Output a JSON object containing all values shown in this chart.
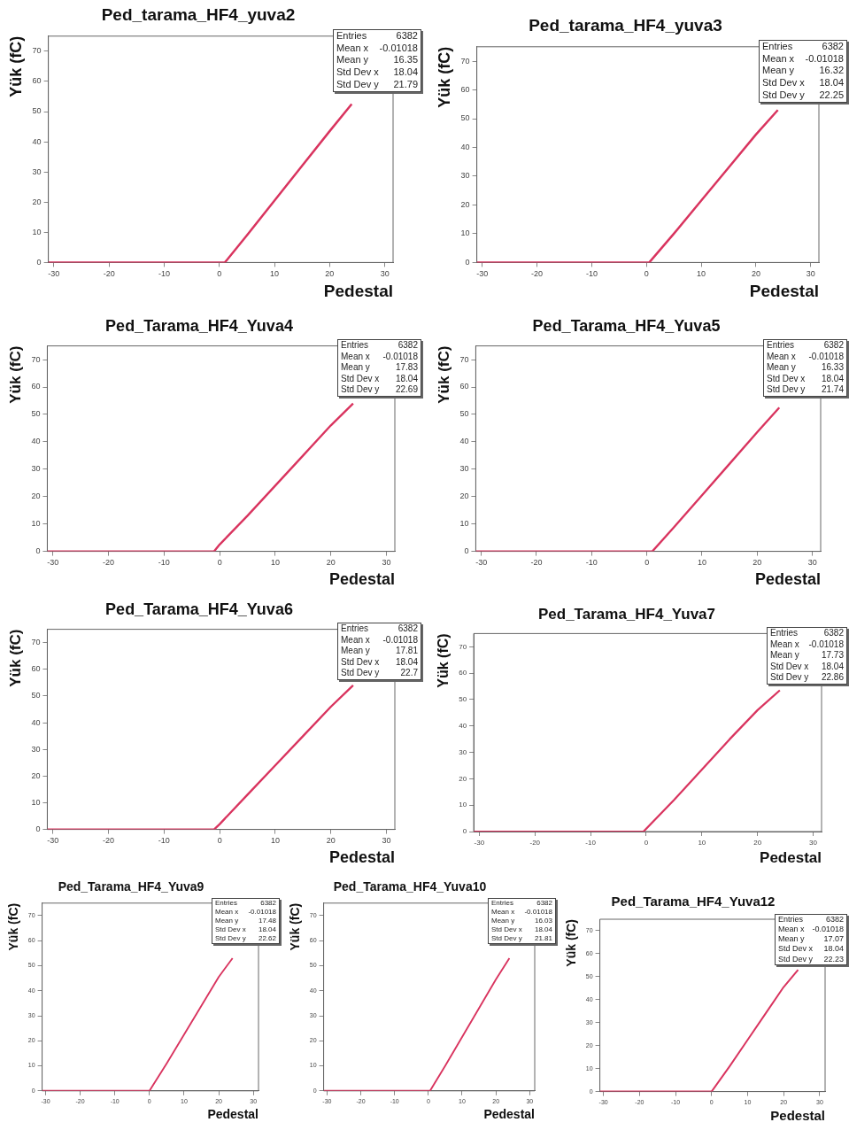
{
  "chart_data": [
    {
      "type": "line",
      "title": "Ped_tarama_HF4_yuva2",
      "xlabel": "Pedestal",
      "ylabel": "Yük (fC)",
      "x": [
        -31,
        1,
        5,
        10,
        15,
        20,
        24
      ],
      "series": [
        {
          "color": "#d9345f",
          "values": [
            0,
            0,
            9,
            20.5,
            32,
            43.5,
            52.5
          ]
        }
      ],
      "xlim": [
        -31,
        31.5
      ],
      "ylim": [
        0,
        75
      ],
      "xticks": [
        -30,
        -20,
        -10,
        0,
        10,
        20,
        30
      ],
      "yticks": [
        0,
        10,
        20,
        30,
        40,
        50,
        60,
        70
      ],
      "grid": false,
      "legend": false,
      "marker": "none",
      "line_style": "solid",
      "annotations": [
        "Entries 6382",
        "Mean x -0.01018",
        "Mean y 16.35",
        "Std Dev x 18.04",
        "Std Dev y 21.79"
      ]
    },
    {
      "type": "line",
      "title": "Ped_tarama_HF4_yuva3",
      "xlabel": "Pedestal",
      "ylabel": "Yük (fC)",
      "x": [
        -31,
        0.5,
        5,
        10,
        15,
        20,
        24
      ],
      "series": [
        {
          "color": "#d9345f",
          "values": [
            0,
            0,
            10,
            21.5,
            33,
            44.5,
            53
          ]
        }
      ],
      "xlim": [
        -31,
        31.5
      ],
      "ylim": [
        0,
        75
      ],
      "xticks": [
        -30,
        -20,
        -10,
        0,
        10,
        20,
        30
      ],
      "yticks": [
        0,
        10,
        20,
        30,
        40,
        50,
        60,
        70
      ],
      "grid": false,
      "legend": false,
      "marker": "none",
      "line_style": "solid",
      "annotations": [
        "Entries 6382",
        "Mean x -0.01018",
        "Mean y 16.32",
        "Std Dev x 18.04",
        "Std Dev y 22.25"
      ]
    },
    {
      "type": "line",
      "title": "Ped_Tarama_HF4_Yuva4",
      "xlabel": "Pedestal",
      "ylabel": "Yük (fC)",
      "x": [
        -31,
        -1,
        0,
        5,
        10,
        15,
        20,
        24
      ],
      "series": [
        {
          "color": "#d9345f",
          "values": [
            0,
            0,
            2.5,
            13,
            24,
            35,
            46,
            54
          ]
        }
      ],
      "xlim": [
        -31,
        31.5
      ],
      "ylim": [
        0,
        75
      ],
      "xticks": [
        -30,
        -20,
        -10,
        0,
        10,
        20,
        30
      ],
      "yticks": [
        0,
        10,
        20,
        30,
        40,
        50,
        60,
        70
      ],
      "grid": false,
      "legend": false,
      "marker": "none",
      "line_style": "solid",
      "annotations": [
        "Entries 6382",
        "Mean x -0.01018",
        "Mean y 17.83",
        "Std Dev x 18.04",
        "Std Dev y 22.69"
      ]
    },
    {
      "type": "line",
      "title": "Ped_Tarama_HF4_Yuva5",
      "xlabel": "Pedestal",
      "ylabel": "Yük (fC)",
      "x": [
        -31,
        1,
        5,
        10,
        15,
        20,
        24
      ],
      "series": [
        {
          "color": "#d9345f",
          "values": [
            0,
            0,
            9,
            20.5,
            32,
            43.5,
            52.5
          ]
        }
      ],
      "xlim": [
        -31,
        31.5
      ],
      "ylim": [
        0,
        75
      ],
      "xticks": [
        -30,
        -20,
        -10,
        0,
        10,
        20,
        30
      ],
      "yticks": [
        0,
        10,
        20,
        30,
        40,
        50,
        60,
        70
      ],
      "grid": false,
      "legend": false,
      "marker": "none",
      "line_style": "solid",
      "annotations": [
        "Entries 6382",
        "Mean x -0.01018",
        "Mean y 16.33",
        "Std Dev x 18.04",
        "Std Dev y 21.74"
      ]
    },
    {
      "type": "line",
      "title": "Ped_Tarama_HF4_Yuva6",
      "xlabel": "Pedestal",
      "ylabel": "Yük (fC)",
      "x": [
        -31,
        -1,
        0,
        5,
        10,
        15,
        20,
        24
      ],
      "series": [
        {
          "color": "#d9345f",
          "values": [
            0,
            0,
            2,
            13,
            24,
            35,
            46,
            54
          ]
        }
      ],
      "xlim": [
        -31,
        31.5
      ],
      "ylim": [
        0,
        75
      ],
      "xticks": [
        -30,
        -20,
        -10,
        0,
        10,
        20,
        30
      ],
      "yticks": [
        0,
        10,
        20,
        30,
        40,
        50,
        60,
        70
      ],
      "grid": false,
      "legend": false,
      "marker": "none",
      "line_style": "solid",
      "annotations": [
        "Entries 6382",
        "Mean x -0.01018",
        "Mean y 17.81",
        "Std Dev x 18.04",
        "Std Dev y 22.7"
      ]
    },
    {
      "type": "line",
      "title": "Ped_Tarama_HF4_Yuva7",
      "xlabel": "Pedestal",
      "ylabel": "Yük (fC)",
      "x": [
        -31,
        -0.5,
        5,
        10,
        15,
        20,
        24
      ],
      "series": [
        {
          "color": "#d9345f",
          "values": [
            0,
            0,
            12,
            23.5,
            35,
            46,
            53.5
          ]
        }
      ],
      "xlim": [
        -31,
        31.5
      ],
      "ylim": [
        0,
        75
      ],
      "xticks": [
        -30,
        -20,
        -10,
        0,
        10,
        20,
        30
      ],
      "yticks": [
        0,
        10,
        20,
        30,
        40,
        50,
        60,
        70
      ],
      "grid": false,
      "legend": false,
      "marker": "none",
      "line_style": "solid",
      "annotations": [
        "Entries 6382",
        "Mean x -0.01018",
        "Mean y 17.73",
        "Std Dev x 18.04",
        "Std Dev y 22.86"
      ]
    },
    {
      "type": "line",
      "title": "Ped_Tarama_HF4_Yuva9",
      "xlabel": "Pedestal",
      "ylabel": "Yük (fC)",
      "x": [
        -31,
        0,
        5,
        10,
        15,
        20,
        24
      ],
      "series": [
        {
          "color": "#d9345f",
          "values": [
            0,
            0,
            11,
            22.5,
            34,
            45.5,
            53
          ]
        }
      ],
      "xlim": [
        -31,
        31.5
      ],
      "ylim": [
        0,
        75
      ],
      "xticks": [
        -30,
        -20,
        -10,
        0,
        10,
        20,
        30
      ],
      "yticks": [
        0,
        10,
        20,
        30,
        40,
        50,
        60,
        70
      ],
      "grid": false,
      "legend": false,
      "marker": "none",
      "line_style": "solid",
      "annotations": [
        "Entries 6382",
        "Mean x -0.01018",
        "Mean y 17.48",
        "Std Dev x 18.04",
        "Std Dev y 22.62"
      ]
    },
    {
      "type": "line",
      "title": "Ped_Tarama_HF4_Yuva10",
      "xlabel": "Pedestal",
      "ylabel": "Yük (fC)",
      "x": [
        -31,
        0.5,
        5,
        10,
        15,
        20,
        24
      ],
      "series": [
        {
          "color": "#d9345f",
          "values": [
            0,
            0,
            10,
            21.5,
            33,
            44.5,
            53
          ]
        }
      ],
      "xlim": [
        -31,
        31.5
      ],
      "ylim": [
        0,
        75
      ],
      "xticks": [
        -30,
        -20,
        -10,
        0,
        10,
        20,
        30
      ],
      "yticks": [
        0,
        10,
        20,
        30,
        40,
        50,
        60,
        70
      ],
      "grid": false,
      "legend": false,
      "marker": "none",
      "line_style": "solid",
      "annotations": [
        "Entries 6382",
        "Mean x -0.01018",
        "Mean y 16.03",
        "Std Dev x 18.04",
        "Std Dev y 21.81"
      ]
    },
    {
      "type": "line",
      "title": "Ped_Tarama_HF4_Yuva12",
      "xlabel": "Pedestal",
      "ylabel": "Yük (fC)",
      "x": [
        -31,
        0,
        5,
        10,
        15,
        20,
        24
      ],
      "series": [
        {
          "color": "#d9345f",
          "values": [
            0,
            0,
            11,
            22.5,
            34,
            45.5,
            53
          ]
        }
      ],
      "xlim": [
        -31,
        31.5
      ],
      "ylim": [
        0,
        75
      ],
      "xticks": [
        -30,
        -20,
        -10,
        0,
        10,
        20,
        30
      ],
      "yticks": [
        0,
        10,
        20,
        30,
        40,
        50,
        60,
        70
      ],
      "grid": false,
      "legend": false,
      "marker": "none",
      "line_style": "solid",
      "annotations": [
        "Entries 6382",
        "Mean x -0.01018",
        "Mean y 17.07",
        "Std Dev x 18.04",
        "Std Dev y 22.23"
      ]
    }
  ]
}
